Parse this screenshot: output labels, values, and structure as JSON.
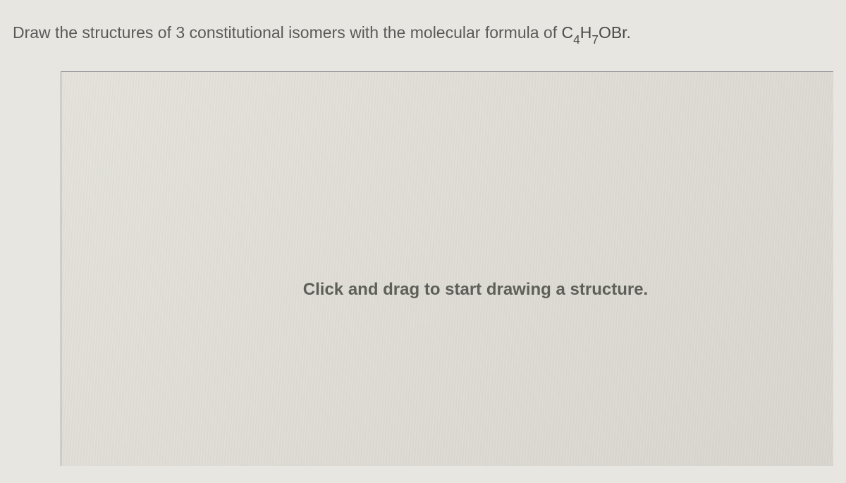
{
  "question": {
    "prefix": "Draw the structures of ",
    "count": "3",
    "middle": " constitutional isomers with the molecular formula of ",
    "formula_c": "C",
    "formula_c_sub": "4",
    "formula_h": "H",
    "formula_h_sub": "7",
    "formula_suffix": "OBr."
  },
  "canvas": {
    "prompt": "Click and drag to start drawing a structure."
  },
  "style": {
    "background_color": "#e8e6e0",
    "text_color": "#5a5a5a",
    "border_color": "#9a9a9a",
    "question_fontsize": 23,
    "prompt_fontsize": 24
  }
}
